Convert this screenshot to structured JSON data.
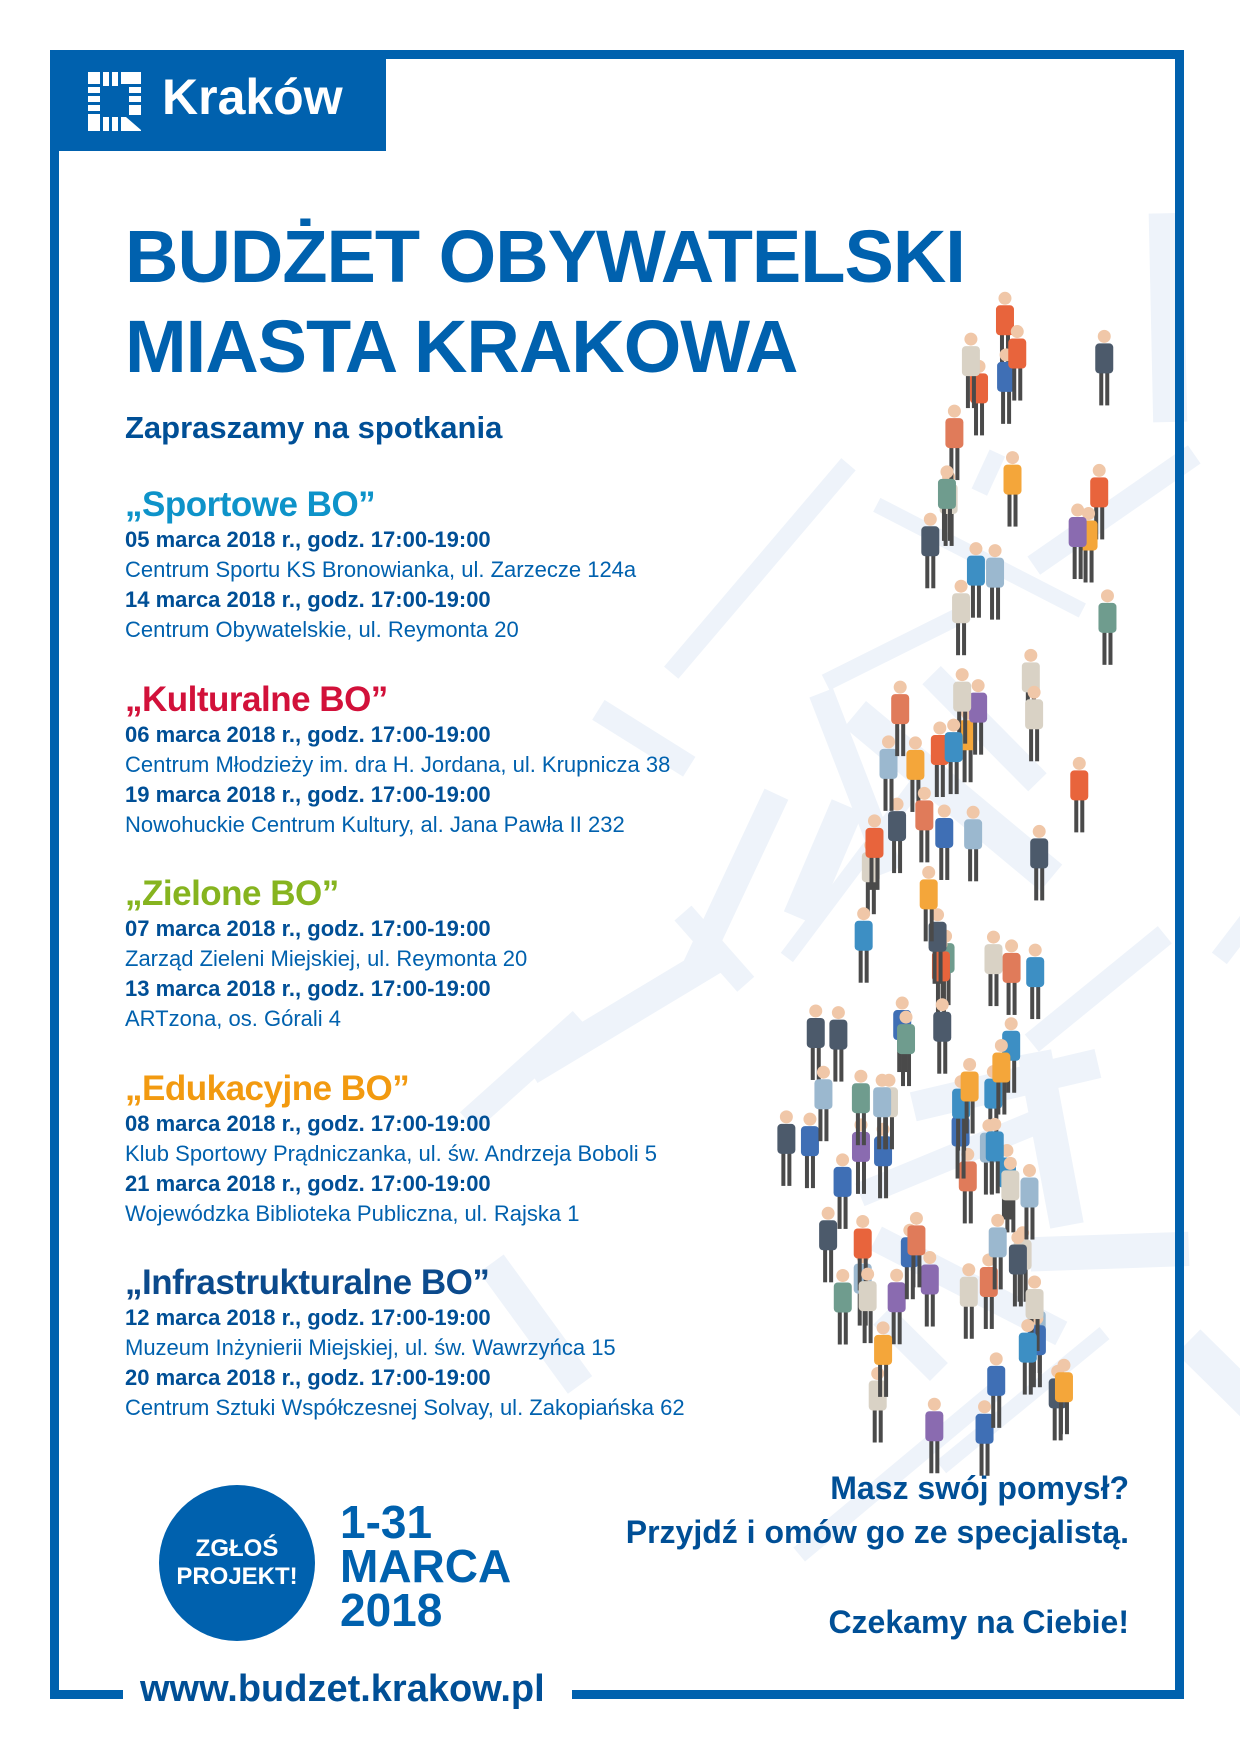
{
  "brand": {
    "logo_text": "Kraków",
    "color": "#0061ae"
  },
  "title": {
    "line1": "BUDŻET OBYWATELSKI",
    "line2": "MIASTA KRAKOWA"
  },
  "invite": "Zapraszamy na spotkania",
  "sections": [
    {
      "heading": "„Sportowe BO”",
      "color": "#0e93c9",
      "meetings": [
        {
          "date": "05 marca 2018 r., godz. 17:00-19:00",
          "place": "Centrum Sportu KS Bronowianka, ul. Zarzecze 124a"
        },
        {
          "date": "14 marca 2018 r., godz. 17:00-19:00",
          "place": "Centrum Obywatelskie, ul. Reymonta 20"
        }
      ]
    },
    {
      "heading": "„Kulturalne BO”",
      "color": "#d2113a",
      "meetings": [
        {
          "date": "06 marca 2018 r., godz. 17:00-19:00",
          "place": "Centrum Młodzieży im. dra H. Jordana, ul. Krupnicza 38"
        },
        {
          "date": "19 marca 2018 r., godz. 17:00-19:00",
          "place": "Nowohuckie Centrum Kultury, al. Jana Pawła II 232"
        }
      ]
    },
    {
      "heading": "„Zielone BO”",
      "color": "#86b41f",
      "meetings": [
        {
          "date": "07 marca 2018 r., godz. 17:00-19:00",
          "place": "Zarząd Zieleni Miejskiej, ul. Reymonta 20"
        },
        {
          "date": "13 marca 2018 r., godz. 17:00-19:00",
          "place": "ARTzona, os. Górali 4"
        }
      ]
    },
    {
      "heading": "„Edukacyjne BO”",
      "color": "#f29a10",
      "meetings": [
        {
          "date": "08 marca 2018 r., godz. 17:00-19:00",
          "place": "Klub Sportowy Prądniczanka, ul. św. Andrzeja Boboli 5"
        },
        {
          "date": "21 marca 2018 r., godz. 17:00-19:00",
          "place": "Wojewódzka Biblioteka Publiczna, ul. Rajska 1"
        }
      ]
    },
    {
      "heading": "„Infrastrukturalne BO”",
      "color": "#0b4a8c",
      "meetings": [
        {
          "date": "12 marca 2018 r., godz. 17:00-19:00",
          "place": "Muzeum Inżynierii Miejskiej, ul. św. Wawrzyńca 15"
        },
        {
          "date": "20 marca 2018 r., godz. 17:00-19:00",
          "place": "Centrum Sztuki Współczesnej Solvay, ul. Zakopiańska 62"
        }
      ]
    }
  ],
  "badge": {
    "line1": "ZGŁOŚ",
    "line2": "PROJEKT!"
  },
  "period": {
    "line1": "1-31",
    "line2": "MARCA",
    "line3": "2018"
  },
  "cta": {
    "line1": "Masz swój pomysł?",
    "line2": "Przyjdź i omów go ze specjalistą.",
    "line3": "Czekamy na Ciebie!"
  },
  "url": "www.budzet.krakow.pl"
}
